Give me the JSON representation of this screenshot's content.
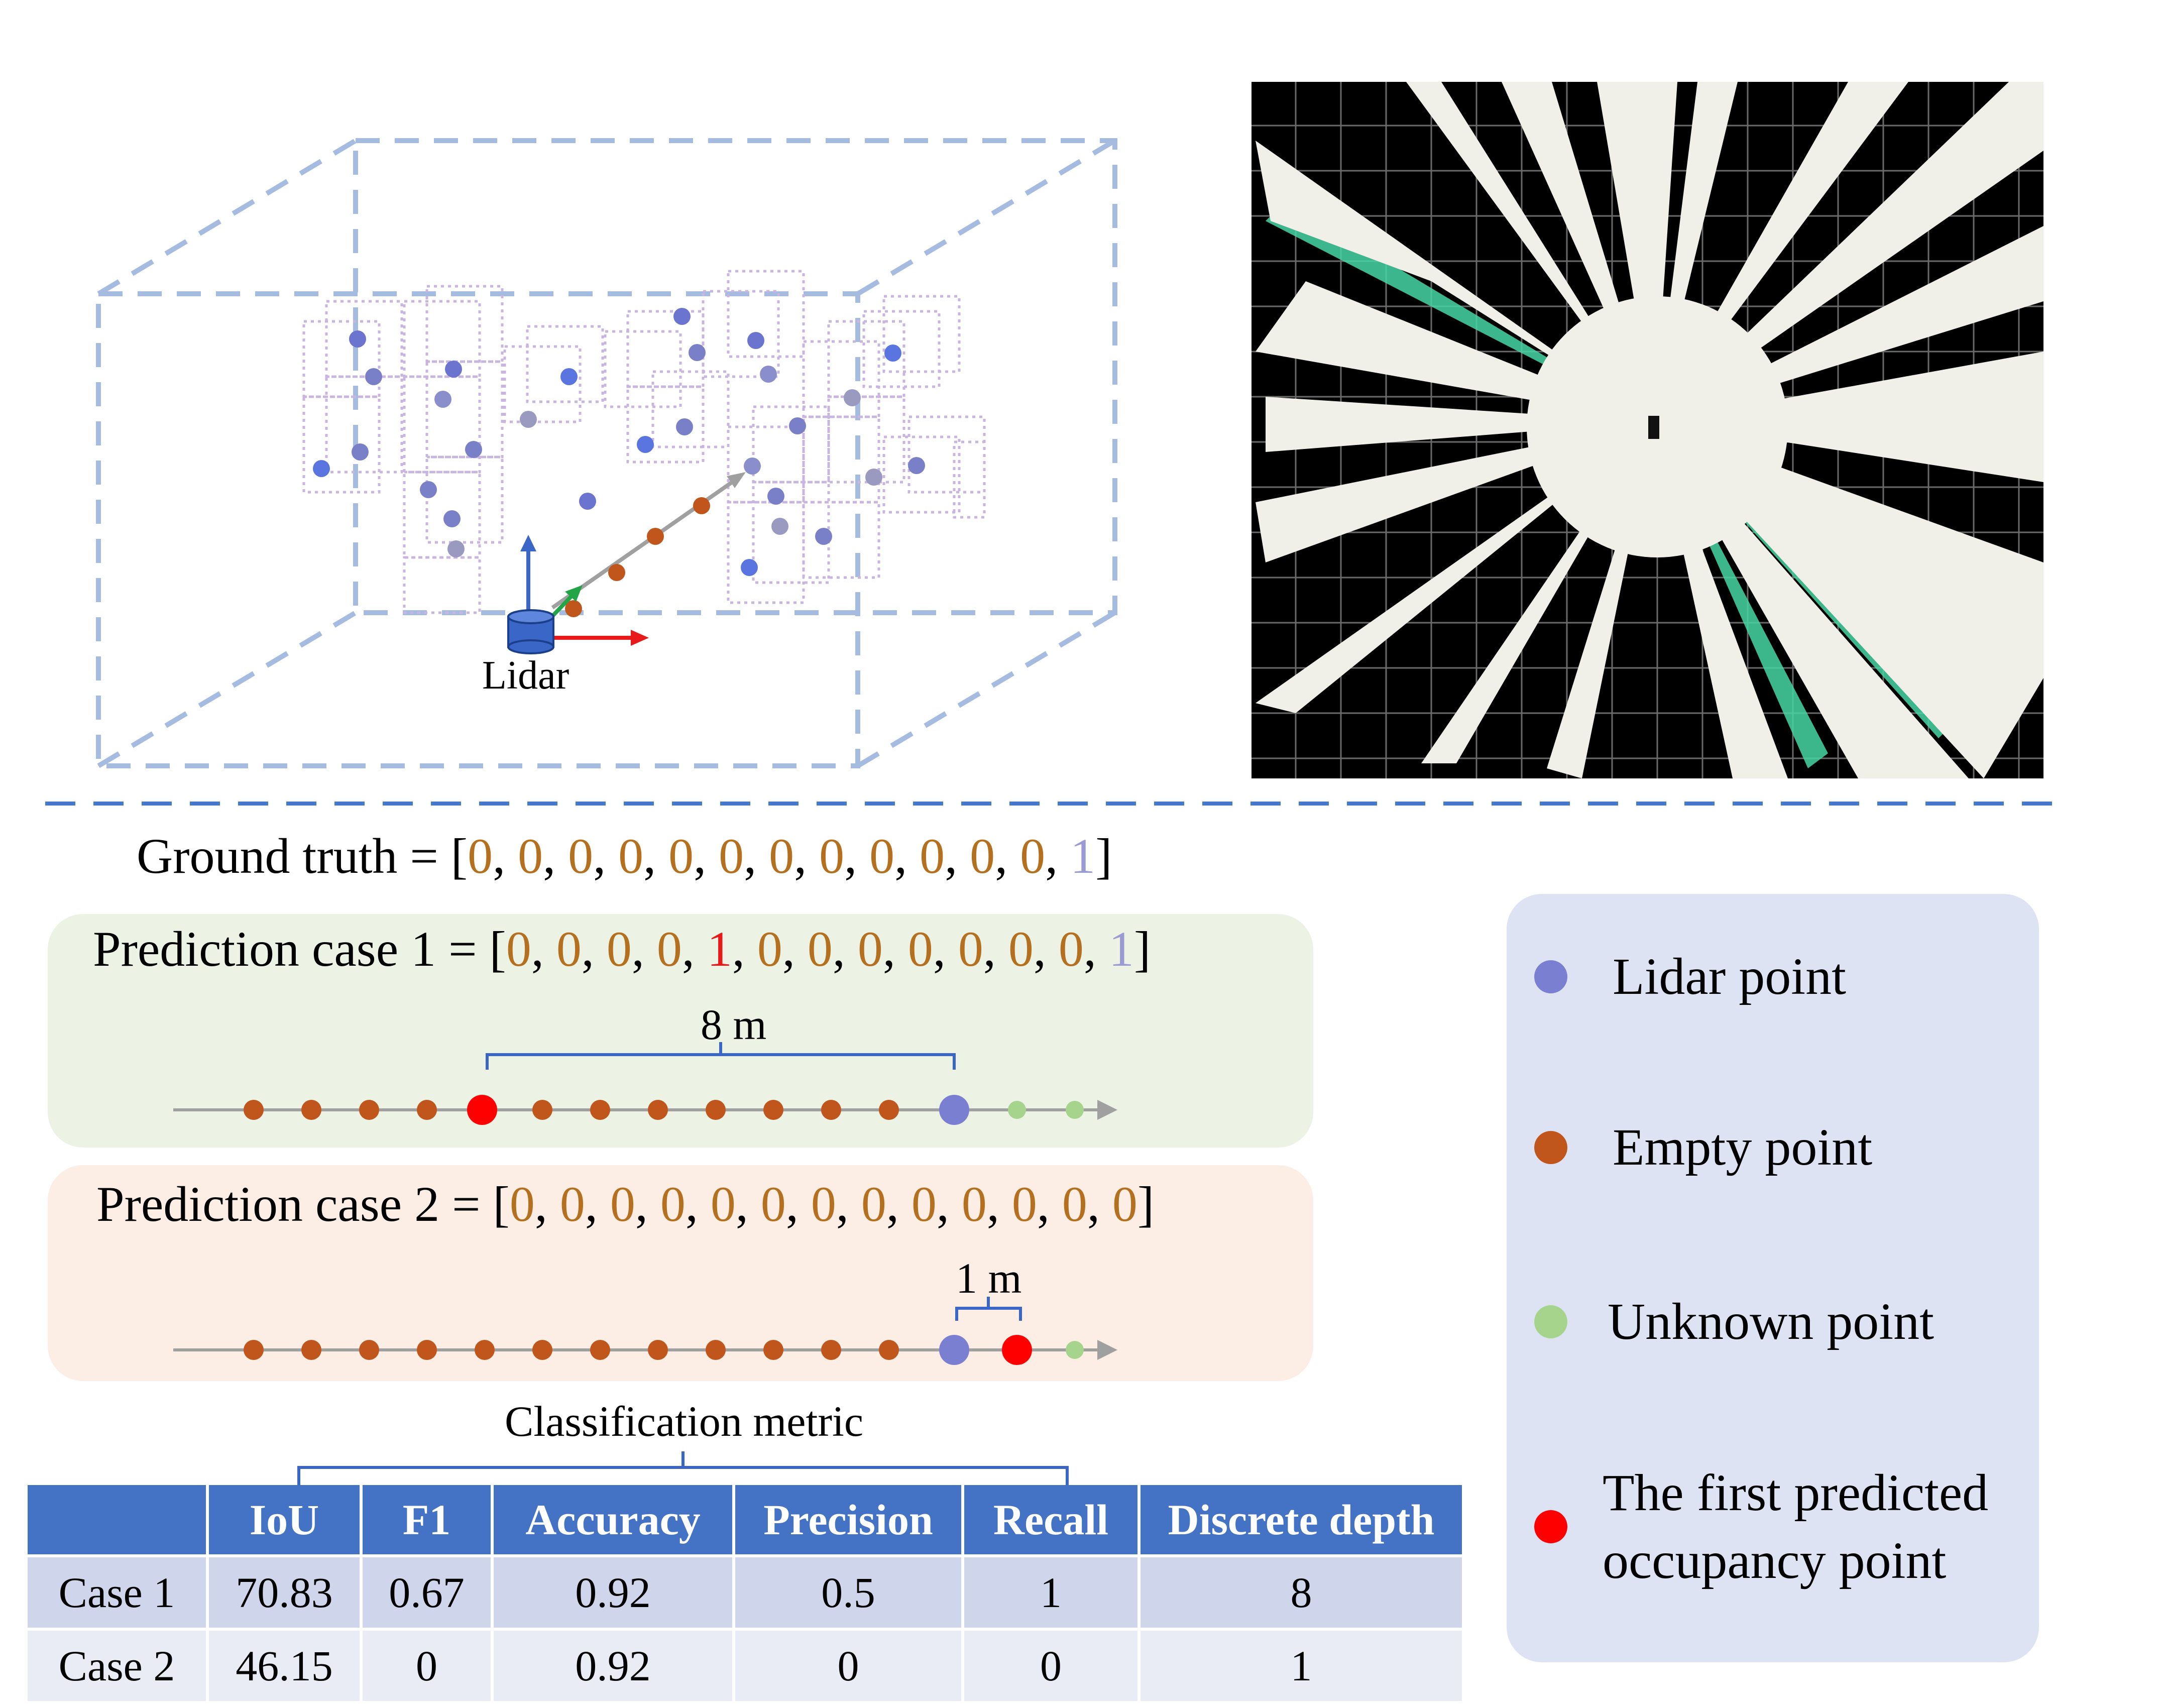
{
  "lidar_label": "Lidar",
  "ground_truth": {
    "prefix": "Ground truth = [",
    "values": [
      "0",
      "0",
      "0",
      "0",
      "0",
      "0",
      "0",
      "0",
      "0",
      "0",
      "0",
      "0",
      "1"
    ],
    "suffix": "]"
  },
  "case1": {
    "prefix": "Prediction case 1 = [",
    "values": [
      "0",
      "0",
      "0",
      "0",
      "1",
      "0",
      "0",
      "0",
      "0",
      "0",
      "0",
      "0",
      "1"
    ],
    "suffix": "]",
    "distance_label": "8 m"
  },
  "case2": {
    "prefix": "Prediction case 2 = [",
    "values": [
      "0",
      "0",
      "0",
      "0",
      "0",
      "0",
      "0",
      "0",
      "0",
      "0",
      "0",
      "0",
      "0"
    ],
    "suffix": "]",
    "distance_label": "1 m"
  },
  "classification_label": "Classification metric",
  "table": {
    "headers": [
      "",
      "IoU",
      "F1",
      "Accuracy",
      "Precision",
      "Recall",
      "Discrete depth"
    ],
    "rows": [
      [
        "Case 1",
        "70.83",
        "0.67",
        "0.92",
        "0.5",
        "1",
        "8"
      ],
      [
        "Case 2",
        "46.15",
        "0",
        "0.92",
        "0",
        "0",
        "1"
      ]
    ]
  },
  "legend": [
    {
      "label": "Lidar point",
      "color": "#7b7fd1"
    },
    {
      "label": "Empty point",
      "color": "#c0561c"
    },
    {
      "label": "Unknown point",
      "color": "#a6d48c"
    },
    {
      "label": "The first predicted occupancy point",
      "label_line1": "The first predicted",
      "label_line2": "occupancy point",
      "color": "#ff0000"
    }
  ],
  "colors": {
    "empty": "#b5701f",
    "lidar": "#9b9bd4",
    "predicted": "#e8191b",
    "case1_panel": "#ecf3e4",
    "case2_panel": "#fceee5",
    "legend_panel": "#dde3f3",
    "table_header": "#4472c4"
  }
}
